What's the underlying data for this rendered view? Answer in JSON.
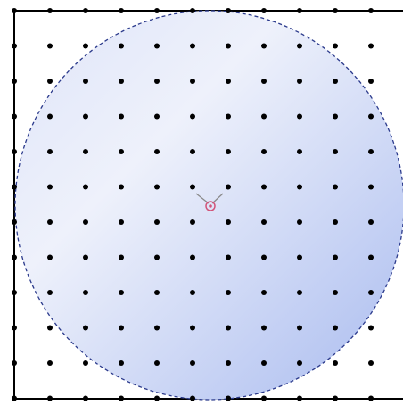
{
  "canvas": {
    "page_color": "#ffffff",
    "page_border_color": "#000000"
  },
  "circle": {
    "fill_light": "#eef1fb",
    "fill_dark": "#a9bbef",
    "outline_color": "#2b3a8c",
    "outline_style": "dashed"
  },
  "grid": {
    "dot_color": "#000000",
    "columns": 12,
    "rows": 12
  },
  "cursor": {
    "icon": "rotation-center-icon",
    "color": "#d2557a",
    "handle_color": "#8a8a8a"
  }
}
